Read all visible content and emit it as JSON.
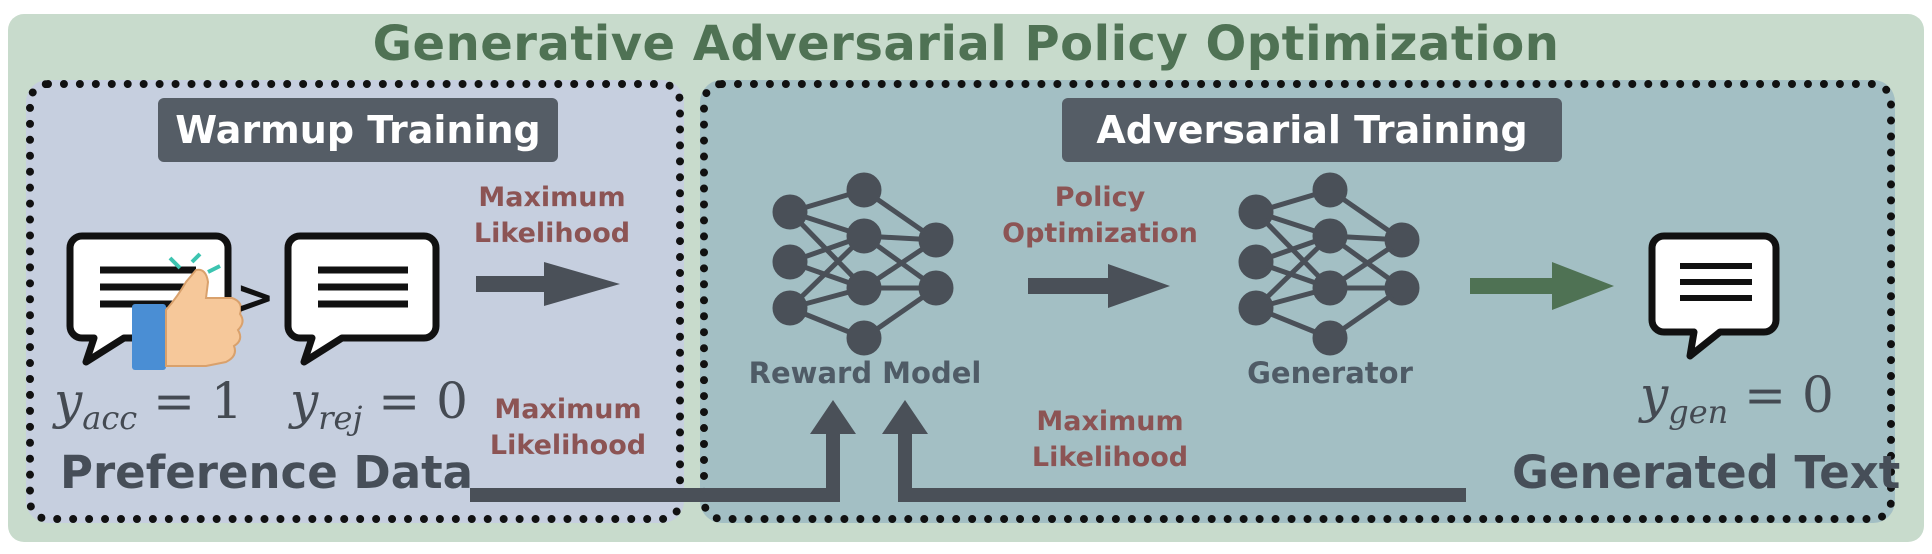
{
  "title": "Generative Adversarial Policy Optimization",
  "warmup": {
    "title": "Warmup Training",
    "arrow_label": "Maximum Likelihood",
    "accepted": {
      "var": "y",
      "sub": "acc",
      "value": "1"
    },
    "rejected": {
      "var": "y",
      "sub": "rej",
      "value": "0"
    },
    "comparison_symbol": ">",
    "caption": "Preference Data",
    "bottom_label": "Maximum Likelihood"
  },
  "adversarial": {
    "title": "Adversarial Training",
    "reward_model_label": "Reward Model",
    "policy_label": "Policy Optimization",
    "generator_label": "Generator",
    "generated": {
      "var": "y",
      "sub": "gen",
      "value": "0"
    },
    "caption": "Generated Text",
    "bottom_label": "Maximum Likelihood"
  },
  "icons": {
    "accepted_bubble": "chat-bubble-icon",
    "thumbs_up": "thumbs-up-icon",
    "rejected_bubble": "chat-bubble-icon",
    "reward_network": "neural-network-icon",
    "generator_network": "neural-network-icon",
    "generated_bubble": "chat-bubble-icon"
  },
  "colors": {
    "outer_bg": "#c8dbcc",
    "title": "#4f7254",
    "warmup_bg": "#c6cfdf",
    "adversarial_bg": "#a3bfc4",
    "arrow_dark": "#4a5058",
    "arrow_green": "#4f7254",
    "label_red": "#8c5454"
  }
}
